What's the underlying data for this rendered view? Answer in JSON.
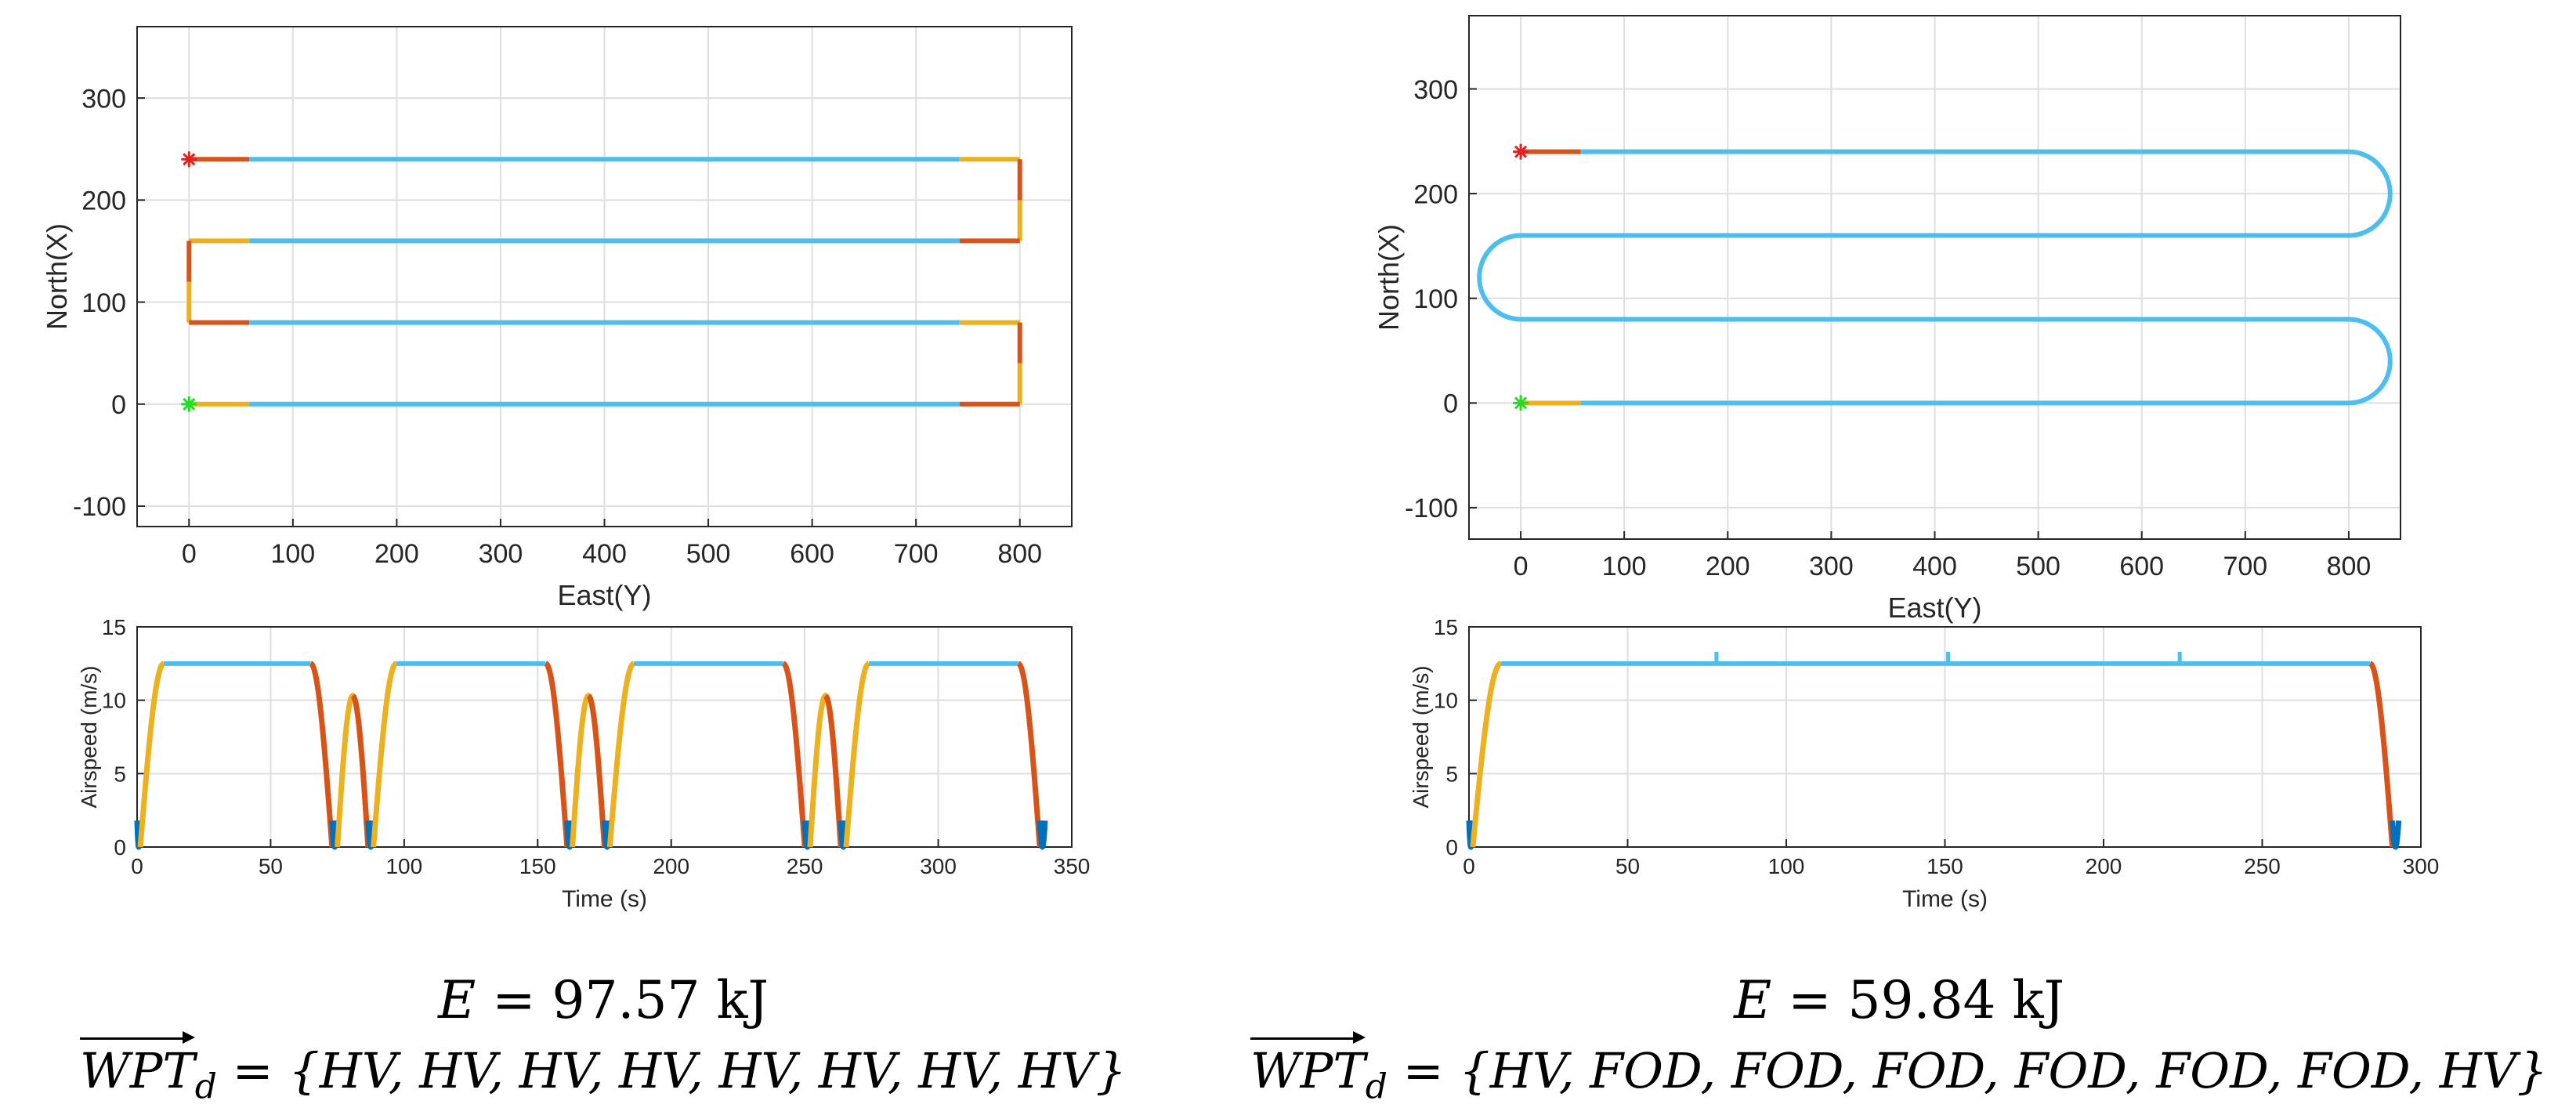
{
  "colors": {
    "cruise": "#4DBEEE",
    "accel": "#EDB120",
    "decel": "#D95319",
    "hover": "#0072BD",
    "start_marker": "#22dd22",
    "end_marker": "#dd2222",
    "grid": "#dedede",
    "axis": "#262626"
  },
  "chart_data": [
    {
      "id": "left-trajectory",
      "type": "line",
      "xlabel": "East(Y)",
      "ylabel": "North(X)",
      "xlim": [
        -50,
        850
      ],
      "ylim": [
        -120,
        370
      ],
      "xticks": [
        0,
        100,
        200,
        300,
        400,
        500,
        600,
        700,
        800
      ],
      "yticks": [
        -100,
        0,
        100,
        200,
        300
      ],
      "grid": true,
      "series": [
        {
          "name": "accel",
          "color_key": "accel",
          "segments": [
            [
              [
                0,
                0
              ],
              [
                58,
                0
              ]
            ],
            [
              [
                742,
                240
              ],
              [
                800,
                240
              ]
            ],
            [
              [
                800,
                0
              ],
              [
                800,
                40
              ]
            ],
            [
              [
                800,
                80
              ],
              [
                742,
                80
              ]
            ],
            [
              [
                0,
                80
              ],
              [
                0,
                120
              ]
            ],
            [
              [
                0,
                160
              ],
              [
                58,
                160
              ]
            ],
            [
              [
                800,
                160
              ],
              [
                800,
                200
              ]
            ]
          ]
        },
        {
          "name": "cruise",
          "color_key": "cruise",
          "segments": [
            [
              [
                58,
                0
              ],
              [
                742,
                0
              ]
            ],
            [
              [
                742,
                80
              ],
              [
                58,
                80
              ]
            ],
            [
              [
                58,
                160
              ],
              [
                742,
                160
              ]
            ],
            [
              [
                742,
                240
              ],
              [
                58,
                240
              ]
            ]
          ]
        },
        {
          "name": "decel",
          "color_key": "decel",
          "segments": [
            [
              [
                742,
                0
              ],
              [
                800,
                0
              ]
            ],
            [
              [
                800,
                40
              ],
              [
                800,
                80
              ]
            ],
            [
              [
                58,
                80
              ],
              [
                0,
                80
              ]
            ],
            [
              [
                0,
                120
              ],
              [
                0,
                160
              ]
            ],
            [
              [
                742,
                160
              ],
              [
                800,
                160
              ]
            ],
            [
              [
                800,
                200
              ],
              [
                800,
                240
              ]
            ],
            [
              [
                58,
                240
              ],
              [
                0,
                240
              ]
            ]
          ]
        }
      ],
      "markers": [
        {
          "name": "start",
          "x": 0,
          "y": 0,
          "color_key": "start_marker"
        },
        {
          "name": "end",
          "x": 0,
          "y": 240,
          "color_key": "end_marker"
        }
      ]
    },
    {
      "id": "left-airspeed",
      "type": "line",
      "xlabel": "Time (s)",
      "ylabel": "Airspeed (m/s)",
      "xlim": [
        0,
        350
      ],
      "ylim": [
        0,
        15
      ],
      "xticks": [
        0,
        50,
        100,
        150,
        200,
        250,
        300,
        350
      ],
      "yticks": [
        0,
        5,
        10,
        15
      ],
      "grid": true,
      "series": [
        {
          "name": "airspeed",
          "profile": [
            {
              "type": "hover",
              "t": [
                0,
                1.2
              ]
            },
            {
              "type": "ramp",
              "t": [
                1.2,
                10
              ],
              "v": [
                0,
                12.5
              ]
            },
            {
              "type": "flat",
              "t": [
                10,
                65
              ],
              "v": 12.5
            },
            {
              "type": "down",
              "t": [
                65,
                73
              ],
              "v": [
                12.5,
                0
              ]
            },
            {
              "type": "hover",
              "t": [
                73,
                75
              ]
            },
            {
              "type": "hump",
              "t": [
                75,
                86.5
              ],
              "peak": 10.3
            },
            {
              "type": "hover",
              "t": [
                86.5,
                88.5
              ]
            },
            {
              "type": "ramp",
              "t": [
                88.5,
                97
              ],
              "v": [
                0,
                12.5
              ]
            },
            {
              "type": "flat",
              "t": [
                97,
                153
              ],
              "v": 12.5
            },
            {
              "type": "down",
              "t": [
                153,
                161
              ],
              "v": [
                12.5,
                0
              ]
            },
            {
              "type": "hover",
              "t": [
                161,
                163
              ]
            },
            {
              "type": "hump",
              "t": [
                163,
                175
              ],
              "peak": 10.3
            },
            {
              "type": "hover",
              "t": [
                175,
                177
              ]
            },
            {
              "type": "ramp",
              "t": [
                177,
                186
              ],
              "v": [
                0,
                12.5
              ]
            },
            {
              "type": "flat",
              "t": [
                186,
                242
              ],
              "v": 12.5
            },
            {
              "type": "down",
              "t": [
                242,
                250
              ],
              "v": [
                12.5,
                0
              ]
            },
            {
              "type": "hover",
              "t": [
                250,
                252
              ]
            },
            {
              "type": "hump",
              "t": [
                252,
                263.5
              ],
              "peak": 10.3
            },
            {
              "type": "hover",
              "t": [
                263.5,
                265.5
              ]
            },
            {
              "type": "ramp",
              "t": [
                265.5,
                274
              ],
              "v": [
                0,
                12.5
              ]
            },
            {
              "type": "flat",
              "t": [
                274,
                330
              ],
              "v": 12.5
            },
            {
              "type": "down",
              "t": [
                330,
                338
              ],
              "v": [
                12.5,
                0
              ]
            },
            {
              "type": "hover",
              "t": [
                338,
                340
              ]
            }
          ]
        }
      ]
    },
    {
      "id": "right-trajectory",
      "type": "line",
      "xlabel": "East(Y)",
      "ylabel": "North(X)",
      "xlim": [
        -50,
        850
      ],
      "ylim": [
        -130,
        370
      ],
      "xticks": [
        0,
        100,
        200,
        300,
        400,
        500,
        600,
        700,
        800
      ],
      "yticks": [
        -100,
        0,
        100,
        200,
        300
      ],
      "grid": true,
      "series": [
        {
          "name": "accel",
          "color_key": "accel",
          "segments": [
            [
              [
                0,
                0
              ],
              [
                58,
                0
              ]
            ]
          ]
        },
        {
          "name": "cruise",
          "color_key": "cruise",
          "path": [
            [
              58,
              0
            ],
            [
              800,
              0
            ],
            "arcR",
            [
              800,
              80
            ],
            [
              0,
              80
            ],
            "arcL",
            [
              0,
              160
            ],
            [
              800,
              160
            ],
            "arcR",
            [
              800,
              240
            ],
            [
              58,
              240
            ]
          ]
        },
        {
          "name": "decel",
          "color_key": "decel",
          "segments": [
            [
              [
                58,
                240
              ],
              [
                0,
                240
              ]
            ]
          ]
        }
      ],
      "markers": [
        {
          "name": "start",
          "x": 0,
          "y": 0,
          "color_key": "start_marker"
        },
        {
          "name": "end",
          "x": 0,
          "y": 240,
          "color_key": "end_marker"
        }
      ]
    },
    {
      "id": "right-airspeed",
      "type": "line",
      "xlabel": "Time (s)",
      "ylabel": "Airspeed (m/s)",
      "xlim": [
        0,
        300
      ],
      "ylim": [
        0,
        15
      ],
      "xticks": [
        0,
        50,
        100,
        150,
        200,
        250,
        300
      ],
      "yticks": [
        0,
        5,
        10,
        15
      ],
      "grid": true,
      "series": [
        {
          "name": "airspeed",
          "profile": [
            {
              "type": "hover",
              "t": [
                0,
                1.2
              ]
            },
            {
              "type": "ramp",
              "t": [
                1.2,
                10
              ],
              "v": [
                0,
                12.5
              ]
            },
            {
              "type": "flat",
              "t": [
                10,
                284
              ],
              "v": 12.5,
              "spikes": [
                78,
                151,
                224
              ]
            },
            {
              "type": "down",
              "t": [
                284,
                291
              ],
              "v": [
                12.5,
                0
              ]
            },
            {
              "type": "hover",
              "t": [
                291,
                293
              ]
            }
          ]
        }
      ]
    }
  ],
  "captions": {
    "left": {
      "energy_symbol": "E",
      "energy_text": "= 97.57 kJ",
      "wpt_symbol": "WPT",
      "wpt_sub": "d",
      "wpt_text": "= {HV, HV, HV, HV, HV, HV, HV, HV}"
    },
    "right": {
      "energy_symbol": "E",
      "energy_text": "= 59.84 kJ",
      "wpt_symbol": "WPT",
      "wpt_sub": "d",
      "wpt_text": "= {HV, FOD, FOD, FOD, FOD, FOD, FOD, HV}"
    }
  }
}
